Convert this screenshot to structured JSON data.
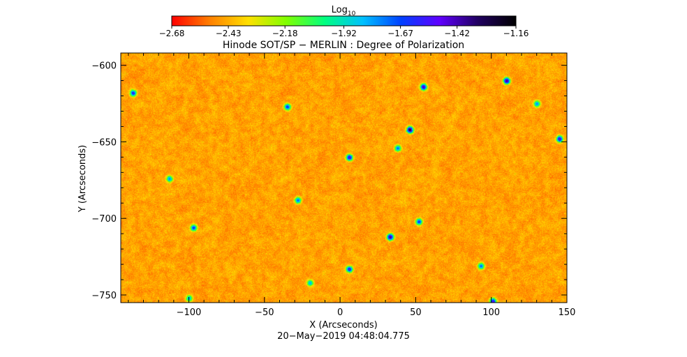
{
  "chart_data": {
    "type": "heatmap",
    "title": "Hinode SOT/SP − MERLIN : Degree of Polarization",
    "xlabel": "X (Arcseconds)",
    "ylabel": "Y (Arcseconds)",
    "footer": "20−May−2019 04:48:04.775",
    "xlim": [
      -145,
      150
    ],
    "ylim": [
      -755,
      -592
    ],
    "x_ticks": [
      -100,
      -50,
      0,
      50,
      100,
      150
    ],
    "x_tick_labels": [
      "−100",
      "−50",
      "0",
      "50",
      "100",
      "150"
    ],
    "y_ticks": [
      -600,
      -650,
      -700,
      -750
    ],
    "y_tick_labels": [
      "−600",
      "−650",
      "−700",
      "−750"
    ],
    "colorbar": {
      "label_main": "Log",
      "label_sub": "10",
      "range": [
        -2.68,
        -1.16
      ],
      "tick_values": [
        -2.68,
        -2.43,
        -2.18,
        -1.92,
        -1.67,
        -1.42,
        -1.16
      ],
      "tick_labels": [
        "−2.68",
        "−2.43",
        "−2.18",
        "−1.92",
        "−1.67",
        "−1.42",
        "−1.16"
      ],
      "colormap": [
        "#ff0000",
        "#ff8000",
        "#ffe000",
        "#80ff00",
        "#00ff80",
        "#00c0ff",
        "#0040ff",
        "#6000ff",
        "#200060",
        "#000000"
      ]
    },
    "field": {
      "typical_log10_range": [
        -2.55,
        -2.35
      ],
      "strong_patches": [
        {
          "x": -137,
          "y": -618,
          "v": -1.55
        },
        {
          "x": -97,
          "y": -706,
          "v": -1.6
        },
        {
          "x": -113,
          "y": -674,
          "v": -1.75
        },
        {
          "x": -35,
          "y": -627,
          "v": -1.6
        },
        {
          "x": -28,
          "y": -688,
          "v": -1.7
        },
        {
          "x": 6,
          "y": -660,
          "v": -1.45
        },
        {
          "x": 6,
          "y": -733,
          "v": -1.5
        },
        {
          "x": 46,
          "y": -642,
          "v": -1.25
        },
        {
          "x": 55,
          "y": -614,
          "v": -1.4
        },
        {
          "x": 33,
          "y": -712,
          "v": -1.35
        },
        {
          "x": 52,
          "y": -702,
          "v": -1.6
        },
        {
          "x": 110,
          "y": -610,
          "v": -1.35
        },
        {
          "x": 145,
          "y": -648,
          "v": -1.45
        },
        {
          "x": 101,
          "y": -754,
          "v": -1.5
        },
        {
          "x": -100,
          "y": -752,
          "v": -1.8
        },
        {
          "x": 38,
          "y": -654,
          "v": -1.7
        },
        {
          "x": 93,
          "y": -731,
          "v": -1.7
        },
        {
          "x": -20,
          "y": -742,
          "v": -1.8
        },
        {
          "x": 130,
          "y": -625,
          "v": -1.75
        }
      ]
    }
  }
}
